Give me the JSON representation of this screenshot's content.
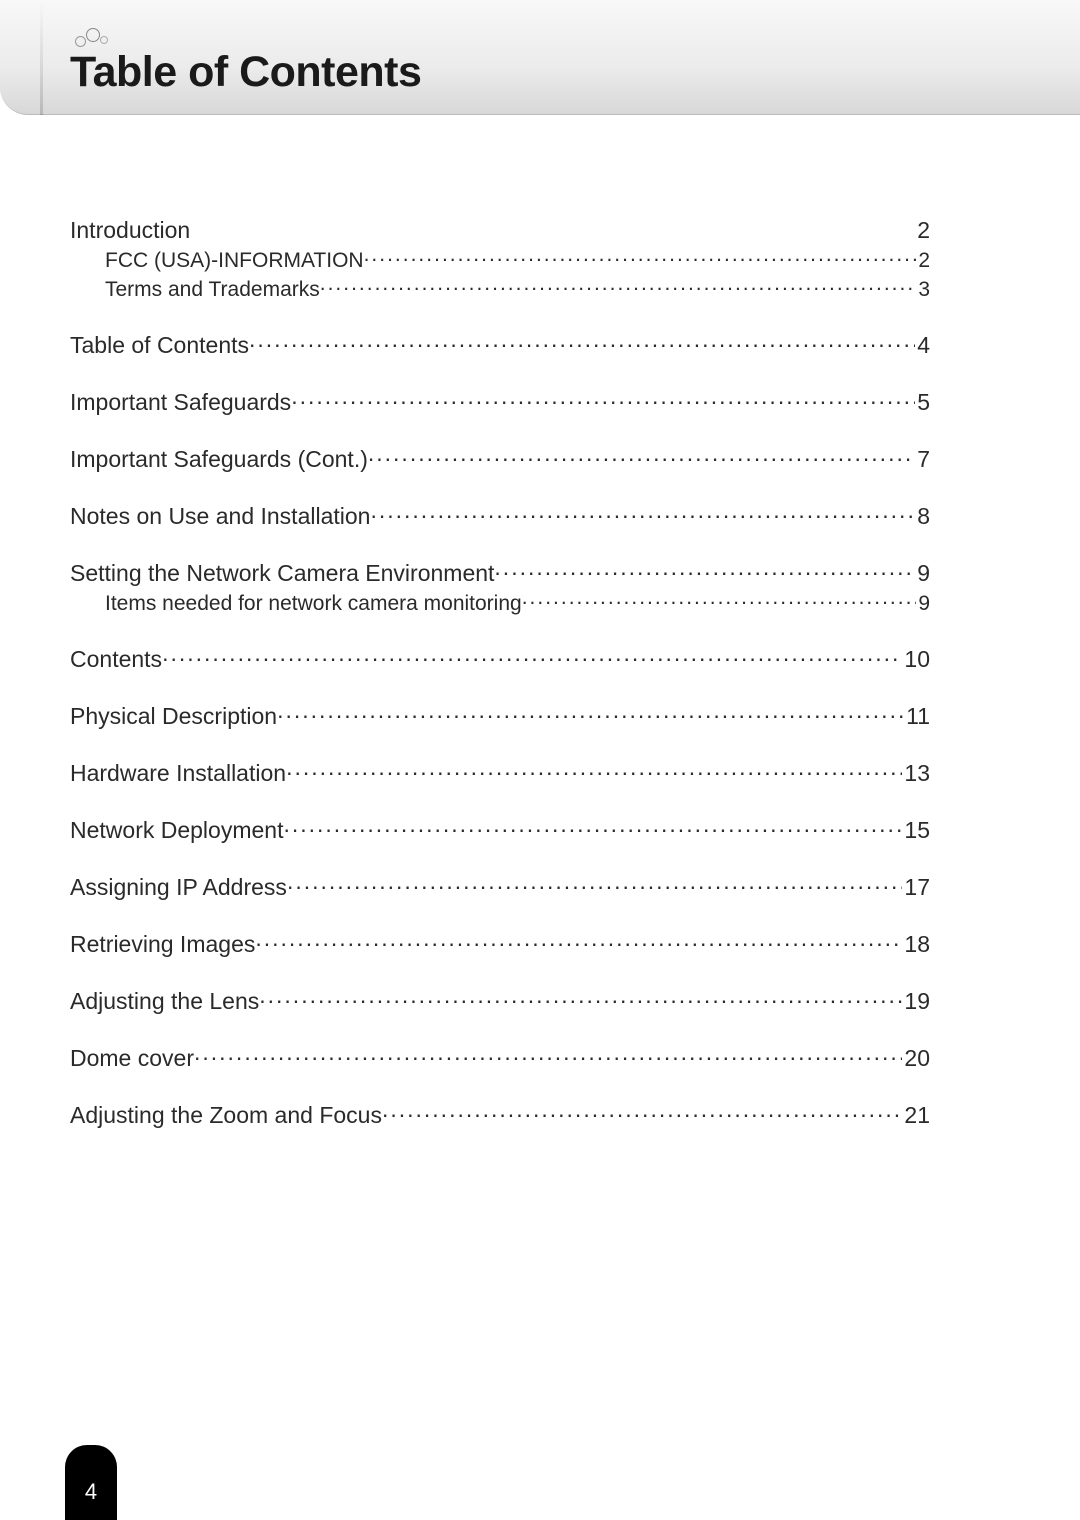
{
  "title": "Table of Contents",
  "page_number": "4",
  "colors": {
    "text": "#2a2a2a",
    "title": "#1a1a1a",
    "header_gradient_top": "#f8f8f8",
    "header_gradient_bottom": "#d8d8d8",
    "tab_bg": "#000000",
    "tab_text": "#ffffff",
    "circle_border": "#999999"
  },
  "typography": {
    "title_fontsize": 43,
    "section_fontsize": 23,
    "sub_fontsize": 21,
    "font_family": "Arial"
  },
  "toc": [
    {
      "label": "Introduction",
      "page": "2",
      "level": "section",
      "leader": false
    },
    {
      "label": "FCC (USA)-INFORMATION",
      "page": "2",
      "level": "sub",
      "leader": true
    },
    {
      "label": "Terms and Trademarks",
      "page": "3",
      "level": "sub",
      "leader": true
    },
    {
      "label": "Table of Contents",
      "page": "4",
      "level": "section",
      "leader": true
    },
    {
      "label": "Important Safeguards",
      "page": "5",
      "level": "section",
      "leader": true
    },
    {
      "label": "Important Safeguards (Cont.)",
      "page": "7",
      "level": "section",
      "leader": true
    },
    {
      "label": "Notes on Use and Installation",
      "page": "8",
      "level": "section",
      "leader": true
    },
    {
      "label": "Setting the Network Camera Environment",
      "page": "9",
      "level": "section",
      "leader": true
    },
    {
      "label": "Items needed for network camera monitoring",
      "page": "9",
      "level": "sub",
      "leader": true
    },
    {
      "label": "Contents",
      "page": "10",
      "level": "section",
      "leader": true
    },
    {
      "label": "Physical Description ",
      "page": "11",
      "level": "section",
      "leader": true
    },
    {
      "label": "Hardware Installation ",
      "page": "13",
      "level": "section",
      "leader": true
    },
    {
      "label": "Network Deployment ",
      "page": "15",
      "level": "section",
      "leader": true
    },
    {
      "label": "Assigning IP Address",
      "page": "17",
      "level": "section",
      "leader": true
    },
    {
      "label": "Retrieving Images",
      "page": "18",
      "level": "section",
      "leader": true
    },
    {
      "label": "Adjusting the Lens",
      "page": "19",
      "level": "section",
      "leader": true
    },
    {
      "label": "Dome cover",
      "page": "20",
      "level": "section",
      "leader": true
    },
    {
      "label": "Adjusting the Zoom and Focus",
      "page": "21",
      "level": "section",
      "leader": true
    }
  ]
}
